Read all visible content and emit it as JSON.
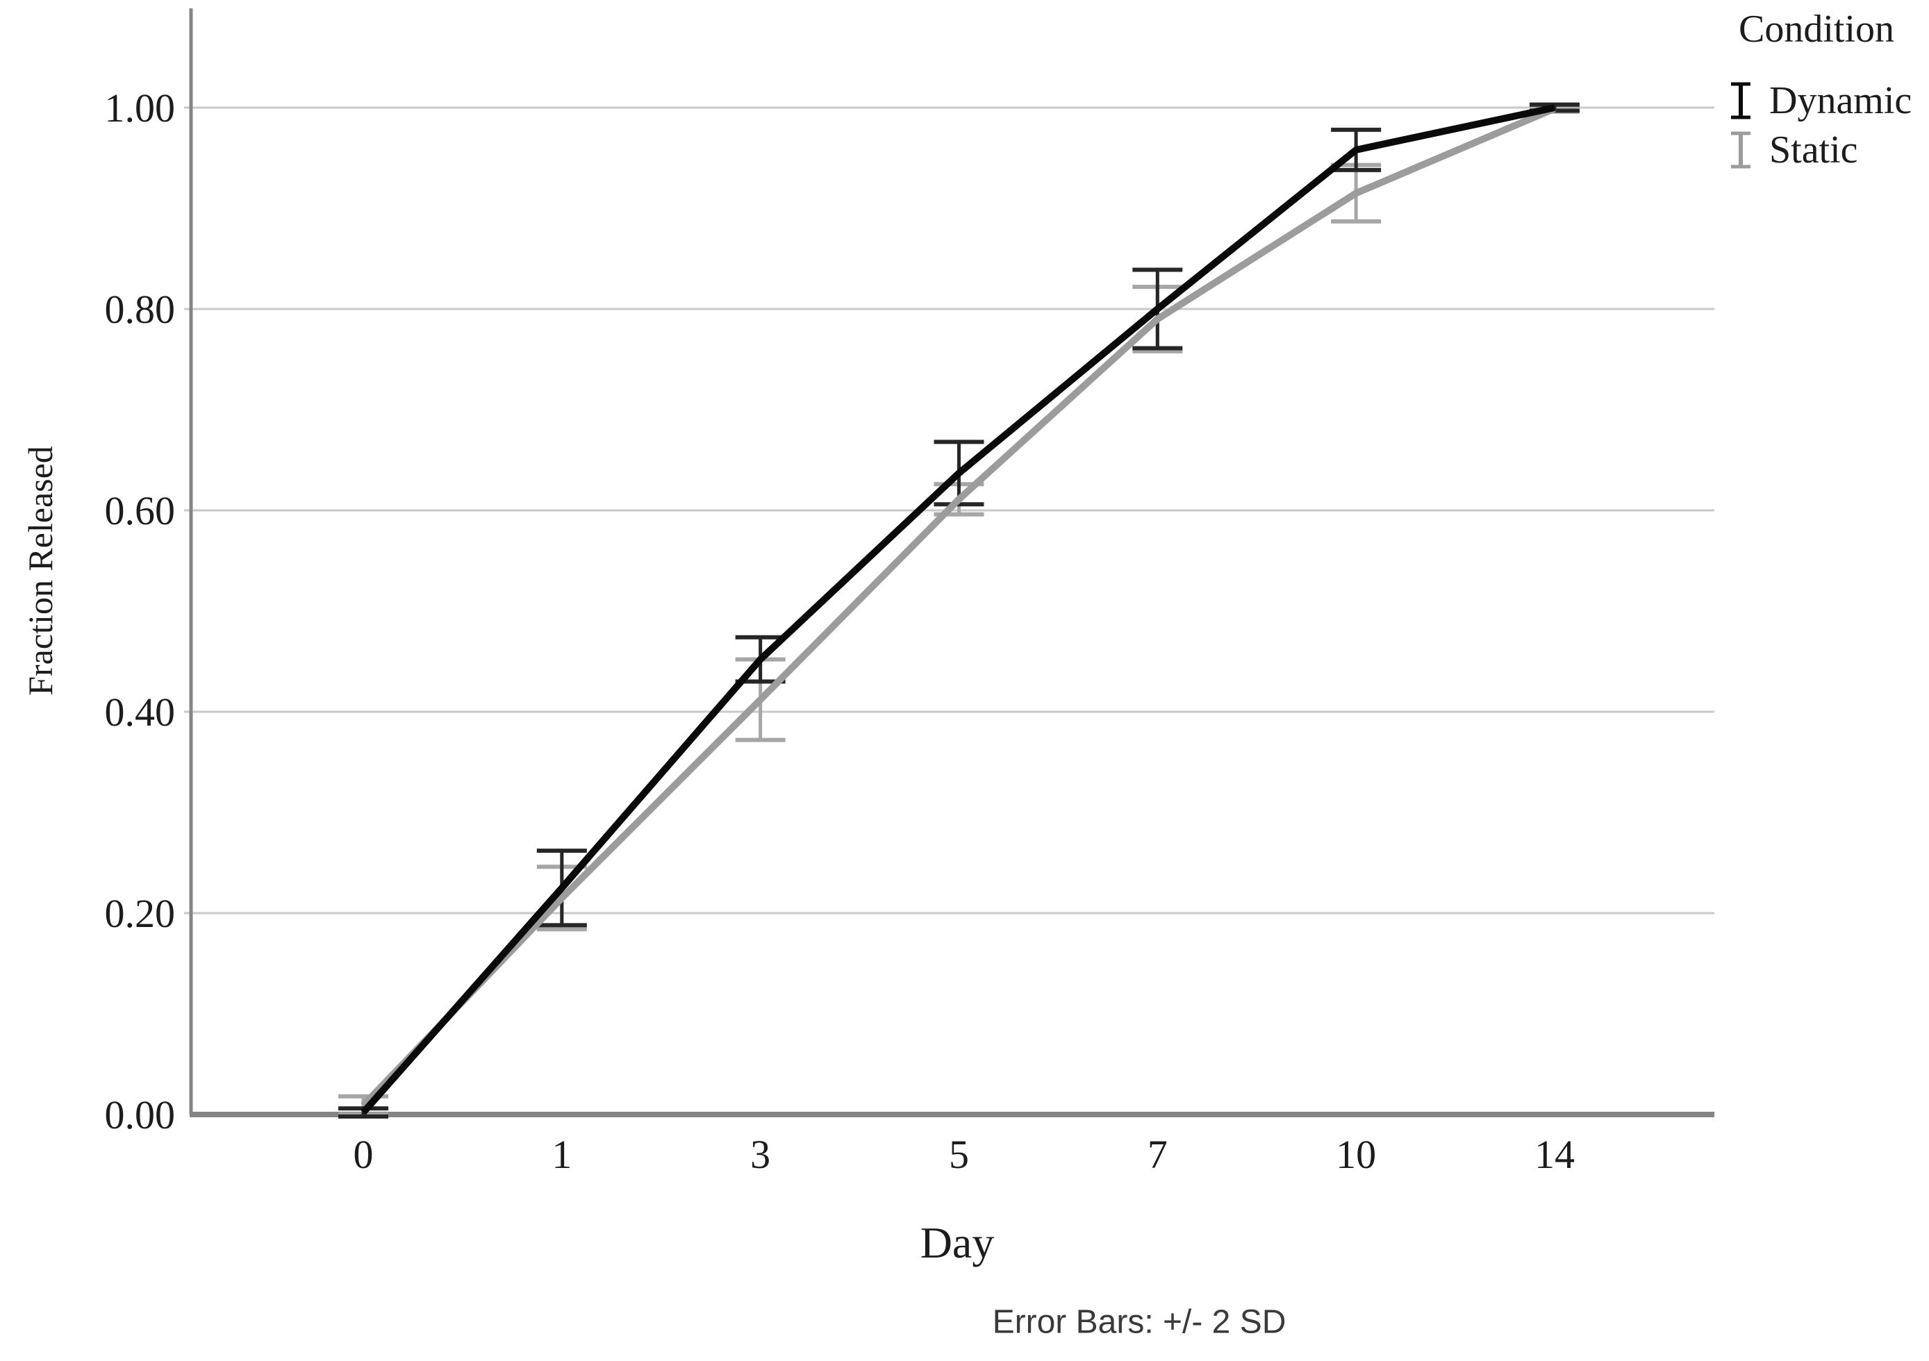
{
  "page": {
    "background": "#ffffff"
  },
  "legend": {
    "title": "Condition"
  },
  "colors": {
    "grid": "#c9c9c9",
    "axis": "#858585",
    "text": "#1c1c1c",
    "footnote_text": "#3a3a3a"
  },
  "chart_data": {
    "type": "line",
    "title": "",
    "xlabel": "Day",
    "ylabel": "Fraction Released",
    "footnote": "Error Bars: +/- 2 SD",
    "legend_title": "Condition",
    "legend_position": "top-right",
    "grid": "horizontal gridlines at each y tick",
    "categories": [
      "0",
      "1",
      "3",
      "5",
      "7",
      "10",
      "14"
    ],
    "yticks": [
      "0.00",
      "0.20",
      "0.40",
      "0.60",
      "0.80",
      "1.00"
    ],
    "ylim": [
      0,
      1.05
    ],
    "error_bar_note": "+/- 2 SD",
    "series": [
      {
        "name": "Dynamic",
        "color": "#0a0a0a",
        "error_color": "#262626",
        "values": [
          0.002,
          0.225,
          0.452,
          0.637,
          0.8,
          0.958,
          1.0
        ],
        "error_2sd": [
          0.004,
          0.037,
          0.022,
          0.031,
          0.039,
          0.02,
          0.003
        ]
      },
      {
        "name": "Static",
        "color": "#9c9c9c",
        "error_color": "#a6a6a6",
        "values": [
          0.009,
          0.215,
          0.412,
          0.611,
          0.79,
          0.915,
          0.999
        ],
        "error_2sd": [
          0.009,
          0.031,
          0.04,
          0.015,
          0.032,
          0.028,
          0.003
        ]
      }
    ]
  }
}
